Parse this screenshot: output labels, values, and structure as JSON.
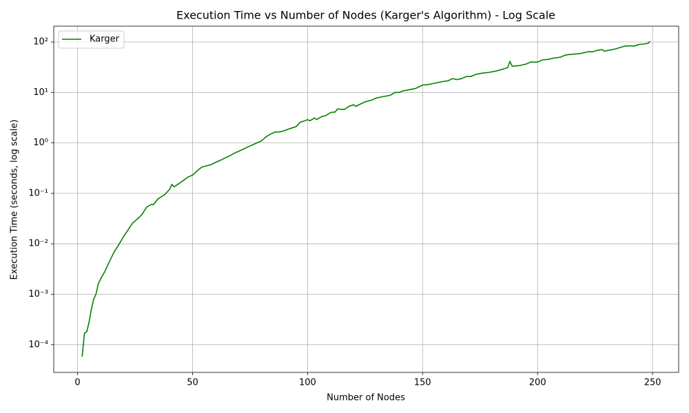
{
  "chart_data": {
    "type": "line",
    "title": "Execution Time vs Number of Nodes (Karger's Algorithm) - Log Scale",
    "xlabel": "Number of Nodes",
    "ylabel": "Execution Time (seconds, log scale)",
    "yscale": "log",
    "grid": true,
    "legend": "upper left",
    "xlim": [
      -10.35,
      261.35
    ],
    "xticks": [
      0,
      50,
      100,
      150,
      200,
      250
    ],
    "ylim": [
      2.83e-05,
      206
    ],
    "yticks": [
      {
        "value": 0.0001,
        "label": "10⁻⁴"
      },
      {
        "value": 0.001,
        "label": "10⁻³"
      },
      {
        "value": 0.01,
        "label": "10⁻²"
      },
      {
        "value": 0.1,
        "label": "10⁻¹"
      },
      {
        "value": 1,
        "label": "10⁰"
      },
      {
        "value": 10,
        "label": "10¹"
      },
      {
        "value": 100,
        "label": "10²"
      }
    ],
    "x": [
      2,
      3,
      4,
      5,
      6,
      7,
      8,
      9,
      10,
      12,
      14,
      16,
      18,
      20,
      22,
      24,
      26,
      28,
      30,
      32,
      33,
      35,
      38,
      40,
      41,
      42,
      44,
      46,
      48,
      50,
      52,
      54,
      56,
      58,
      60,
      62,
      64,
      66,
      68,
      70,
      72,
      74,
      76,
      78,
      80,
      82,
      84,
      86,
      88,
      90,
      92,
      95,
      97,
      99,
      100,
      101,
      103,
      104,
      106,
      108,
      110,
      112,
      113,
      116,
      118,
      120,
      121,
      123,
      125,
      128,
      130,
      133,
      136,
      138,
      140,
      141,
      144,
      147,
      149,
      150,
      153,
      156,
      159,
      161,
      163,
      165,
      167,
      169,
      171,
      173,
      176,
      179,
      182,
      185,
      187,
      188,
      189,
      192,
      195,
      197,
      200,
      202,
      205,
      207,
      210,
      212,
      214,
      216,
      218,
      220,
      222,
      224,
      226,
      228,
      229,
      231,
      234,
      236,
      238,
      240,
      242,
      244,
      246,
      248,
      249
    ],
    "series": [
      {
        "name": "Karger",
        "color": "#008000",
        "values": [
          5.8e-05,
          0.00017,
          0.00018,
          0.00028,
          0.0005,
          0.0008,
          0.001,
          0.0016,
          0.002,
          0.0029,
          0.0046,
          0.007,
          0.0097,
          0.014,
          0.019,
          0.026,
          0.031,
          0.038,
          0.053,
          0.06,
          0.06,
          0.078,
          0.095,
          0.12,
          0.15,
          0.135,
          0.155,
          0.18,
          0.21,
          0.23,
          0.28,
          0.33,
          0.35,
          0.37,
          0.41,
          0.45,
          0.5,
          0.55,
          0.62,
          0.68,
          0.75,
          0.83,
          0.91,
          1.0,
          1.1,
          1.33,
          1.5,
          1.65,
          1.65,
          1.75,
          1.9,
          2.1,
          2.6,
          2.75,
          2.9,
          2.75,
          3.1,
          2.9,
          3.3,
          3.5,
          4.0,
          4.1,
          4.7,
          4.6,
          5.3,
          5.7,
          5.3,
          5.9,
          6.5,
          7.1,
          7.8,
          8.3,
          8.8,
          10,
          10,
          10.6,
          11.3,
          12,
          13.3,
          14,
          14.5,
          15.5,
          16.5,
          17,
          18.8,
          18,
          18.8,
          20.7,
          20.7,
          22.7,
          24.2,
          25,
          26.6,
          29,
          31,
          41,
          33,
          34,
          36.5,
          40,
          40,
          44,
          45.5,
          48,
          50,
          55,
          56.5,
          57.6,
          58.5,
          61,
          64,
          64,
          68.5,
          70.7,
          66,
          68.5,
          73,
          78,
          83,
          84,
          83,
          89,
          91,
          94,
          103
        ]
      }
    ]
  }
}
